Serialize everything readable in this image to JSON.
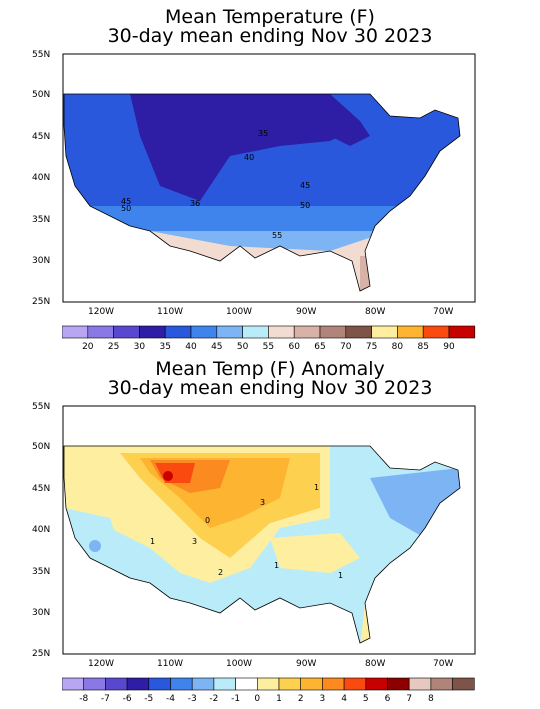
{
  "top": {
    "title_line1": "Mean Temperature (F)",
    "title_line2": "30-day mean ending Nov 30 2023",
    "lat_labels": [
      "55N",
      "50N",
      "45N",
      "40N",
      "35N",
      "30N",
      "25N"
    ],
    "lon_labels": [
      "120W",
      "110W",
      "100W",
      "90W",
      "80W",
      "70W"
    ],
    "contour_labels": [
      "35",
      "40",
      "45",
      "50",
      "45",
      "50",
      "36",
      "55"
    ],
    "legend_colors": [
      "#b9a6f2",
      "#8a78e6",
      "#5848d0",
      "#2e1ea6",
      "#2a58dc",
      "#3f84ec",
      "#7cb4f4",
      "#b9ecf8",
      "#f2dcd2",
      "#d8b2a6",
      "#b08478",
      "#7e5448",
      "#fdeea0",
      "#fdb430",
      "#fb4a10",
      "#c80000"
    ],
    "legend_values": [
      "20",
      "25",
      "30",
      "35",
      "40",
      "45",
      "50",
      "55",
      "60",
      "65",
      "70",
      "75",
      "80",
      "85",
      "90"
    ]
  },
  "bottom": {
    "title_line1": "Mean Temp (F) Anomaly",
    "title_line2": "30-day mean ending Nov 30 2023",
    "lat_labels": [
      "55N",
      "50N",
      "45N",
      "40N",
      "35N",
      "30N",
      "25N"
    ],
    "lon_labels": [
      "120W",
      "110W",
      "100W",
      "90W",
      "80W",
      "70W"
    ],
    "contour_labels": [
      "3",
      "1",
      "3",
      "2",
      "1",
      "1",
      "0",
      "1"
    ],
    "legend_colors": [
      "#b9a6f2",
      "#8a78e6",
      "#5848d0",
      "#2e1ea6",
      "#2a58dc",
      "#3f84ec",
      "#7cb4f4",
      "#b9ecf8",
      "#ffffff",
      "#fdeea0",
      "#fdd050",
      "#fdb430",
      "#fb8a20",
      "#fb4a10",
      "#c80000",
      "#8c0000",
      "#e6c8be",
      "#b08478",
      "#7e5448"
    ],
    "legend_values": [
      "-8",
      "-7",
      "-6",
      "-5",
      "-4",
      "-3",
      "-2",
      "-1",
      "0",
      "1",
      "2",
      "3",
      "4",
      "5",
      "6",
      "7",
      "8"
    ]
  }
}
